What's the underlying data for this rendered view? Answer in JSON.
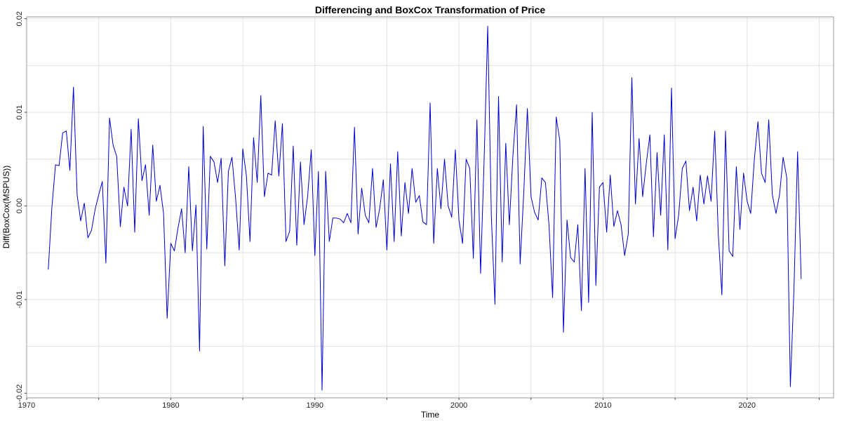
{
  "chart_data": {
    "type": "line",
    "title": "Differencing and BoxCox Transformation of Price",
    "xlabel": "Time",
    "ylabel": "Diff(BoxCox(MSPUS))",
    "xlim": [
      1970,
      2026
    ],
    "ylim": [
      -0.0205,
      0.0202
    ],
    "xticks": [
      1970,
      1980,
      1990,
      2000,
      2010,
      2020
    ],
    "xtick_labels": [
      "1970",
      "1980",
      "1990",
      "2000",
      "2010",
      "2020"
    ],
    "yticks": [
      -0.02,
      -0.01,
      0.0,
      0.01,
      0.02
    ],
    "ytick_labels": [
      "-0.02",
      "-0.01",
      "0.00",
      "0.01",
      "0.02"
    ],
    "grid": true,
    "legend": "none",
    "series": [
      {
        "color": "#0000cc",
        "points": [
          [
            1971.5,
            -0.0068
          ],
          [
            1971.75,
            -0.0002
          ],
          [
            1972.0,
            0.0044
          ],
          [
            1972.25,
            0.0043
          ],
          [
            1972.5,
            0.0078
          ],
          [
            1972.75,
            0.008
          ],
          [
            1973.0,
            0.0038
          ],
          [
            1973.25,
            0.0127
          ],
          [
            1973.5,
            0.0012
          ],
          [
            1973.75,
            -0.0016
          ],
          [
            1974.0,
            0.0003
          ],
          [
            1974.25,
            -0.0034
          ],
          [
            1974.5,
            -0.0026
          ],
          [
            1974.75,
            -0.0004
          ],
          [
            1975.0,
            0.0012
          ],
          [
            1975.25,
            0.0026
          ],
          [
            1975.5,
            -0.0061
          ],
          [
            1975.75,
            0.0094
          ],
          [
            1976.0,
            0.0065
          ],
          [
            1976.25,
            0.0053
          ],
          [
            1976.5,
            -0.0022
          ],
          [
            1976.75,
            0.002
          ],
          [
            1977.0,
            0.0
          ],
          [
            1977.25,
            0.0082
          ],
          [
            1977.5,
            -0.0028
          ],
          [
            1977.75,
            0.0093
          ],
          [
            1978.0,
            0.0027
          ],
          [
            1978.25,
            0.0044
          ],
          [
            1978.5,
            -0.001
          ],
          [
            1978.75,
            0.0065
          ],
          [
            1979.0,
            0.0005
          ],
          [
            1979.25,
            0.0022
          ],
          [
            1979.5,
            -0.0008
          ],
          [
            1979.75,
            -0.012
          ],
          [
            1980.0,
            -0.004
          ],
          [
            1980.25,
            -0.0048
          ],
          [
            1980.5,
            -0.0024
          ],
          [
            1980.75,
            -0.0003
          ],
          [
            1981.0,
            -0.005
          ],
          [
            1981.25,
            0.0042
          ],
          [
            1981.5,
            -0.0048
          ],
          [
            1981.75,
            0.0001
          ],
          [
            1982.0,
            -0.0155
          ],
          [
            1982.25,
            0.0085
          ],
          [
            1982.5,
            -0.0046
          ],
          [
            1982.75,
            0.0053
          ],
          [
            1983.0,
            0.0047
          ],
          [
            1983.25,
            0.0025
          ],
          [
            1983.5,
            0.0051
          ],
          [
            1983.75,
            -0.0064
          ],
          [
            1984.0,
            0.0037
          ],
          [
            1984.25,
            0.0052
          ],
          [
            1984.5,
            0.0008
          ],
          [
            1984.75,
            -0.0047
          ],
          [
            1985.0,
            0.0061
          ],
          [
            1985.25,
            0.0032
          ],
          [
            1985.5,
            -0.0038
          ],
          [
            1985.75,
            0.0073
          ],
          [
            1986.0,
            0.0025
          ],
          [
            1986.25,
            0.0118
          ],
          [
            1986.5,
            0.001
          ],
          [
            1986.75,
            0.0035
          ],
          [
            1987.0,
            0.0033
          ],
          [
            1987.25,
            0.0091
          ],
          [
            1987.5,
            0.0032
          ],
          [
            1987.75,
            0.0088
          ],
          [
            1988.0,
            -0.0038
          ],
          [
            1988.25,
            -0.0027
          ],
          [
            1988.5,
            0.0064
          ],
          [
            1988.75,
            -0.0042
          ],
          [
            1989.0,
            0.0047
          ],
          [
            1989.25,
            -0.002
          ],
          [
            1989.5,
            0.001
          ],
          [
            1989.75,
            0.006
          ],
          [
            1990.0,
            -0.0053
          ],
          [
            1990.25,
            0.0037
          ],
          [
            1990.5,
            -0.0197
          ],
          [
            1990.75,
            0.0037
          ],
          [
            1991.0,
            -0.0038
          ],
          [
            1991.25,
            -0.0013
          ],
          [
            1991.5,
            -0.0013
          ],
          [
            1991.75,
            -0.0014
          ],
          [
            1992.0,
            -0.0018
          ],
          [
            1992.25,
            -0.0008
          ],
          [
            1992.5,
            -0.0018
          ],
          [
            1992.75,
            0.0084
          ],
          [
            1993.0,
            -0.003
          ],
          [
            1993.25,
            0.0019
          ],
          [
            1993.5,
            -0.001
          ],
          [
            1993.75,
            -0.0018
          ],
          [
            1994.0,
            0.004
          ],
          [
            1994.25,
            -0.0023
          ],
          [
            1994.5,
            -0.0003
          ],
          [
            1994.75,
            0.0028
          ],
          [
            1995.0,
            -0.0047
          ],
          [
            1995.25,
            0.0045
          ],
          [
            1995.5,
            -0.0038
          ],
          [
            1995.75,
            0.0058
          ],
          [
            1996.0,
            -0.0032
          ],
          [
            1996.25,
            0.0025
          ],
          [
            1996.5,
            -0.0008
          ],
          [
            1996.75,
            0.004
          ],
          [
            1997.0,
            0.0004
          ],
          [
            1997.25,
            0.0011
          ],
          [
            1997.5,
            -0.0017
          ],
          [
            1997.75,
            -0.002
          ],
          [
            1998.0,
            0.011
          ],
          [
            1998.25,
            -0.004
          ],
          [
            1998.5,
            0.004
          ],
          [
            1998.75,
            -0.0003
          ],
          [
            1999.0,
            0.005
          ],
          [
            1999.25,
            0.0
          ],
          [
            1999.5,
            -0.0012
          ],
          [
            1999.75,
            0.006
          ],
          [
            2000.0,
            -0.0015
          ],
          [
            2000.25,
            -0.004
          ],
          [
            2000.5,
            0.005
          ],
          [
            2000.75,
            0.004
          ],
          [
            2001.0,
            -0.0056
          ],
          [
            2001.25,
            0.0092
          ],
          [
            2001.5,
            -0.0072
          ],
          [
            2001.75,
            0.005
          ],
          [
            2002.0,
            0.0192
          ],
          [
            2002.25,
            -0.0012
          ],
          [
            2002.5,
            -0.0105
          ],
          [
            2002.75,
            0.0117
          ],
          [
            2003.0,
            -0.006
          ],
          [
            2003.25,
            0.0067
          ],
          [
            2003.5,
            -0.002
          ],
          [
            2003.75,
            0.0055
          ],
          [
            2004.0,
            0.0108
          ],
          [
            2004.25,
            -0.0062
          ],
          [
            2004.5,
            0.0015
          ],
          [
            2004.75,
            0.0104
          ],
          [
            2005.0,
            0.001
          ],
          [
            2005.25,
            -0.0007
          ],
          [
            2005.5,
            -0.0015
          ],
          [
            2005.75,
            0.003
          ],
          [
            2006.0,
            0.0025
          ],
          [
            2006.25,
            -0.002
          ],
          [
            2006.5,
            -0.0098
          ],
          [
            2006.75,
            0.0095
          ],
          [
            2007.0,
            0.007
          ],
          [
            2007.25,
            -0.0135
          ],
          [
            2007.5,
            -0.0015
          ],
          [
            2007.75,
            -0.0055
          ],
          [
            2008.0,
            -0.006
          ],
          [
            2008.25,
            -0.002
          ],
          [
            2008.5,
            -0.0112
          ],
          [
            2008.75,
            0.004
          ],
          [
            2009.0,
            -0.0103
          ],
          [
            2009.25,
            0.01
          ],
          [
            2009.5,
            -0.0085
          ],
          [
            2009.75,
            0.002
          ],
          [
            2010.0,
            0.0025
          ],
          [
            2010.25,
            -0.0028
          ],
          [
            2010.5,
            0.0033
          ],
          [
            2010.75,
            -0.0022
          ],
          [
            2011.0,
            -0.0005
          ],
          [
            2011.25,
            -0.002
          ],
          [
            2011.5,
            -0.0053
          ],
          [
            2011.75,
            -0.003
          ],
          [
            2012.0,
            0.0137
          ],
          [
            2012.25,
            0.0002
          ],
          [
            2012.5,
            0.0072
          ],
          [
            2012.75,
            0.001
          ],
          [
            2013.0,
            0.0045
          ],
          [
            2013.25,
            0.0076
          ],
          [
            2013.5,
            -0.0033
          ],
          [
            2013.75,
            0.0057
          ],
          [
            2014.0,
            -0.001
          ],
          [
            2014.25,
            0.0076
          ],
          [
            2014.5,
            -0.0047
          ],
          [
            2014.75,
            0.0126
          ],
          [
            2015.0,
            -0.0035
          ],
          [
            2015.25,
            -0.001
          ],
          [
            2015.5,
            0.004
          ],
          [
            2015.75,
            0.0048
          ],
          [
            2016.0,
            -0.0005
          ],
          [
            2016.25,
            0.002
          ],
          [
            2016.5,
            -0.0016
          ],
          [
            2016.75,
            0.0033
          ],
          [
            2017.0,
            0.0002
          ],
          [
            2017.25,
            0.0032
          ],
          [
            2017.5,
            0.0005
          ],
          [
            2017.75,
            0.008
          ],
          [
            2018.0,
            -0.003
          ],
          [
            2018.25,
            -0.0095
          ],
          [
            2018.5,
            0.008
          ],
          [
            2018.75,
            -0.0048
          ],
          [
            2019.0,
            -0.0054
          ],
          [
            2019.25,
            0.0042
          ],
          [
            2019.5,
            -0.0025
          ],
          [
            2019.75,
            0.0035
          ],
          [
            2020.0,
            0.0005
          ],
          [
            2020.25,
            -0.0008
          ],
          [
            2020.5,
            0.005
          ],
          [
            2020.75,
            0.009
          ],
          [
            2021.0,
            0.0035
          ],
          [
            2021.25,
            0.0025
          ],
          [
            2021.5,
            0.0092
          ],
          [
            2021.75,
            0.0012
          ],
          [
            2022.0,
            -0.0008
          ],
          [
            2022.25,
            0.0012
          ],
          [
            2022.5,
            0.0052
          ],
          [
            2022.75,
            0.003
          ],
          [
            2023.0,
            -0.0193
          ],
          [
            2023.25,
            -0.009
          ],
          [
            2023.5,
            0.0058
          ],
          [
            2023.75,
            -0.0078
          ]
        ]
      }
    ]
  }
}
